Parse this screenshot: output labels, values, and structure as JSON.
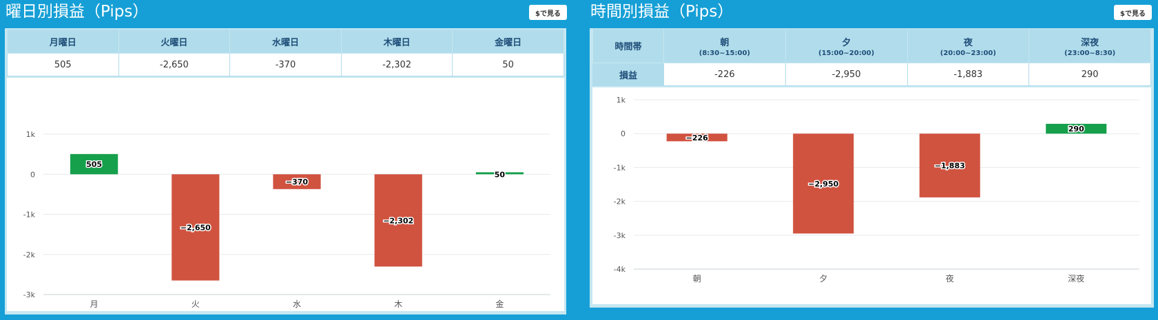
{
  "left": {
    "title": "曜日別損益（Pips）",
    "usd_button": "$で見る",
    "table": {
      "headers": [
        "月曜日",
        "火曜日",
        "水曜日",
        "木曜日",
        "金曜日"
      ],
      "values": [
        "505",
        "-2,650",
        "-370",
        "-2,302",
        "50"
      ]
    }
  },
  "right": {
    "title": "時間別損益（Pips）",
    "usd_button": "$で見る",
    "table": {
      "corner": "時間帯",
      "row_label": "損益",
      "headers": [
        {
          "label": "朝",
          "sub": "(8:30~15:00)"
        },
        {
          "label": "夕",
          "sub": "(15:00~20:00)"
        },
        {
          "label": "夜",
          "sub": "(20:00~23:00)"
        },
        {
          "label": "深夜",
          "sub": "(23:00~8:30)"
        }
      ],
      "values": [
        "-226",
        "-2,950",
        "-1,883",
        "290"
      ]
    }
  },
  "colors": {
    "positive": "#16a04c",
    "negative": "#d05340",
    "background": "#169fd6"
  },
  "chart_data": [
    {
      "type": "bar",
      "categories": [
        "月",
        "火",
        "水",
        "木",
        "金"
      ],
      "values": [
        505,
        -2650,
        -370,
        -2302,
        50
      ],
      "data_labels": [
        "505",
        "−2,650",
        "−370",
        "−2,302",
        "50"
      ],
      "ylim": [
        -3000,
        1000
      ],
      "yticks": [
        1000,
        0,
        -1000,
        -2000,
        -3000
      ],
      "ytick_labels": [
        "1k",
        "0",
        "-1k",
        "-2k",
        "-3k"
      ],
      "grid": true
    },
    {
      "type": "bar",
      "categories": [
        "朝",
        "夕",
        "夜",
        "深夜"
      ],
      "values": [
        -226,
        -2950,
        -1883,
        290
      ],
      "data_labels": [
        "−226",
        "−2,950",
        "−1,883",
        "290"
      ],
      "ylim": [
        -4000,
        1000
      ],
      "yticks": [
        1000,
        0,
        -1000,
        -2000,
        -3000,
        -4000
      ],
      "ytick_labels": [
        "1k",
        "0",
        "-1k",
        "-2k",
        "-3k",
        "-4k"
      ],
      "grid": true
    }
  ]
}
